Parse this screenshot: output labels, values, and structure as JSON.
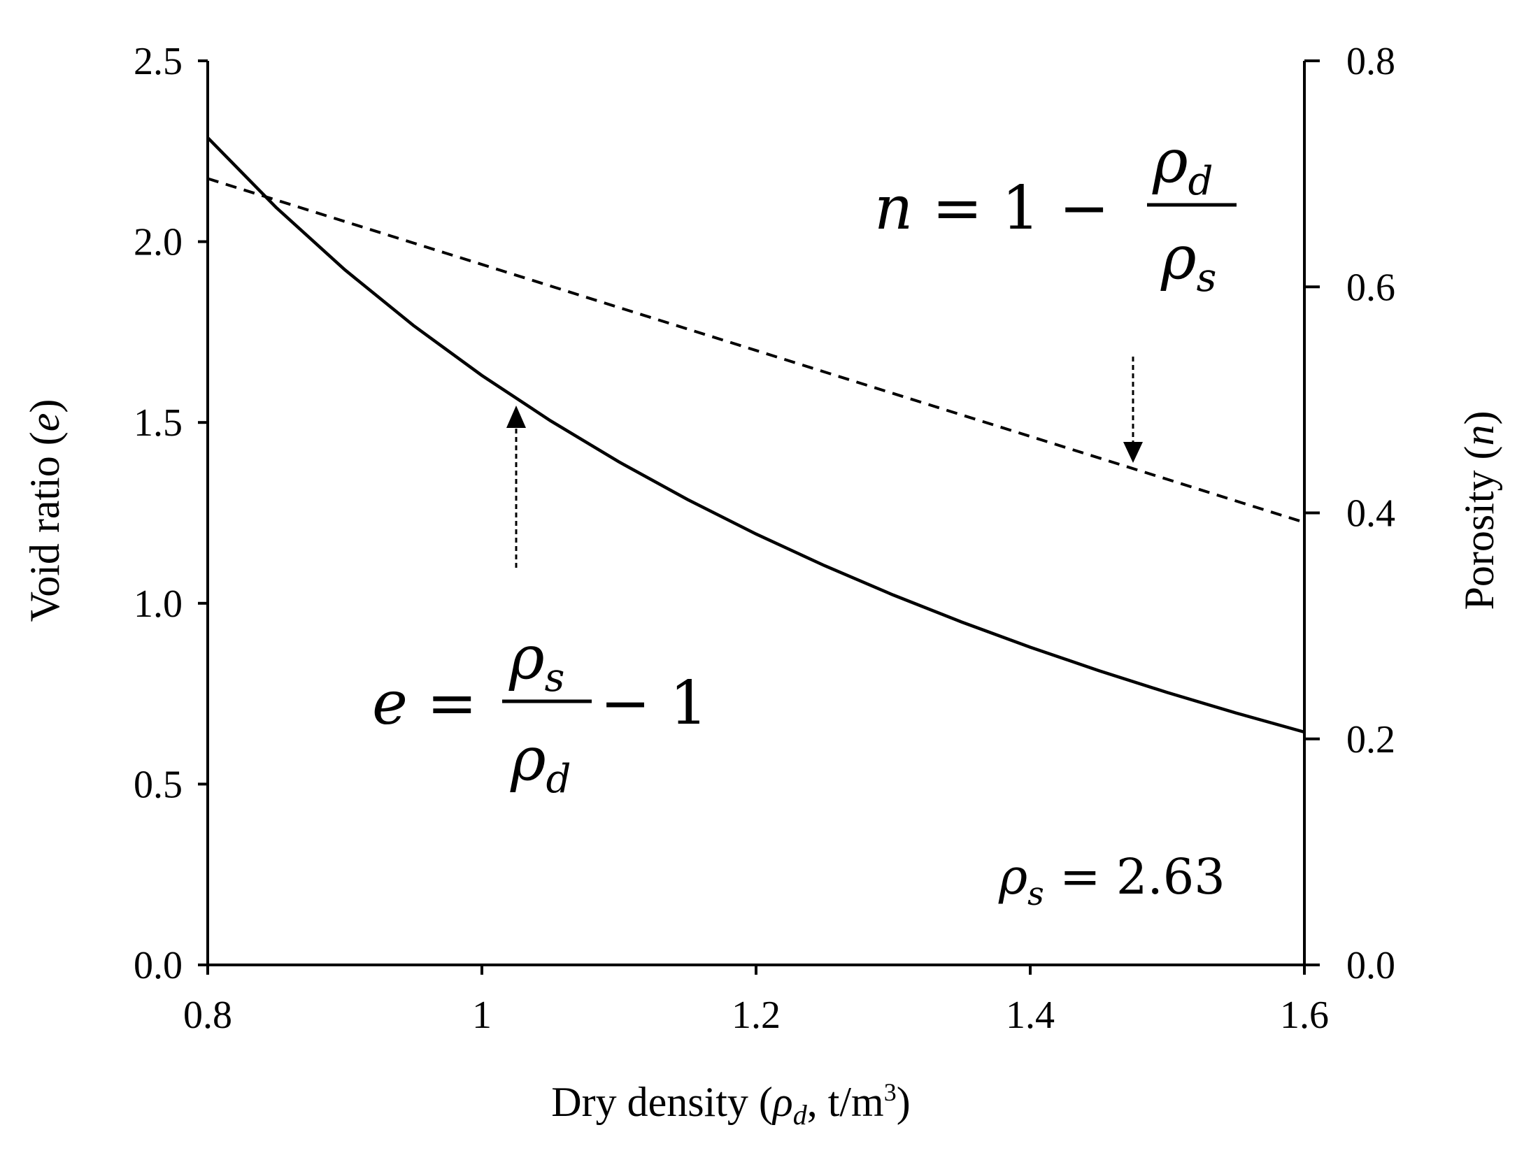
{
  "chart_data": {
    "type": "line",
    "x": [
      0.8,
      0.85,
      0.9,
      0.95,
      1.0,
      1.05,
      1.1,
      1.15,
      1.2,
      1.25,
      1.3,
      1.35,
      1.4,
      1.45,
      1.5,
      1.55,
      1.6
    ],
    "series": [
      {
        "axis": "left",
        "line_style": "solid",
        "values": [
          2.2875,
          2.0941,
          1.9222,
          1.7684,
          1.63,
          1.5048,
          1.3909,
          1.287,
          1.1917,
          1.104,
          1.0231,
          0.9481,
          0.8786,
          0.8138,
          0.7533,
          0.6968,
          0.6438
        ]
      },
      {
        "axis": "right",
        "line_style": "dashed",
        "values": [
          0.6958,
          0.6768,
          0.6578,
          0.6388,
          0.6198,
          0.6008,
          0.5817,
          0.5627,
          0.5437,
          0.5247,
          0.5057,
          0.4867,
          0.4677,
          0.4487,
          0.4297,
          0.4106,
          0.3916
        ]
      }
    ],
    "xlim": [
      0.8,
      1.6
    ],
    "ylim_left": [
      0.0,
      2.5
    ],
    "ylim_right": [
      0.0,
      0.8
    ],
    "x_ticks": [
      "0.8",
      "1",
      "1.2",
      "1.4",
      "1.6"
    ],
    "y_ticks_left": [
      "0.0",
      "0.5",
      "1.0",
      "1.5",
      "2.0",
      "2.5"
    ],
    "y_ticks_right": [
      "0.0",
      "0.2",
      "0.4",
      "0.6",
      "0.8"
    ],
    "xlabel": {
      "pre": "Dry density (",
      "sym": "ρ",
      "sub": "d",
      "post": ", t/m",
      "sup": "3",
      "close": ")"
    },
    "ylabel_left": {
      "pre": "Void ratio (",
      "var": "e",
      "post": ")"
    },
    "ylabel_right": {
      "pre": "Porosity (",
      "var": "n",
      "post": ")"
    },
    "annotations": {
      "porosity_eq": {
        "lhs": "n",
        "mid": " = 1 − ",
        "num": "ρ",
        "num_sub": "d",
        "den": "ρ",
        "den_sub": "s",
        "arrow_x": 1.475
      },
      "void_eq": {
        "lhs": "e",
        "mid": " = ",
        "num": "ρ",
        "num_sub": "s",
        "den": "ρ",
        "den_sub": "d",
        "tail": " − 1",
        "arrow_x": 1.025
      },
      "rho_s": {
        "sym": "ρ",
        "sub": "s",
        "text": " = 2.63"
      }
    },
    "grid": false,
    "legend": "none",
    "colors": {
      "line": "#000000",
      "background": "#ffffff"
    }
  }
}
